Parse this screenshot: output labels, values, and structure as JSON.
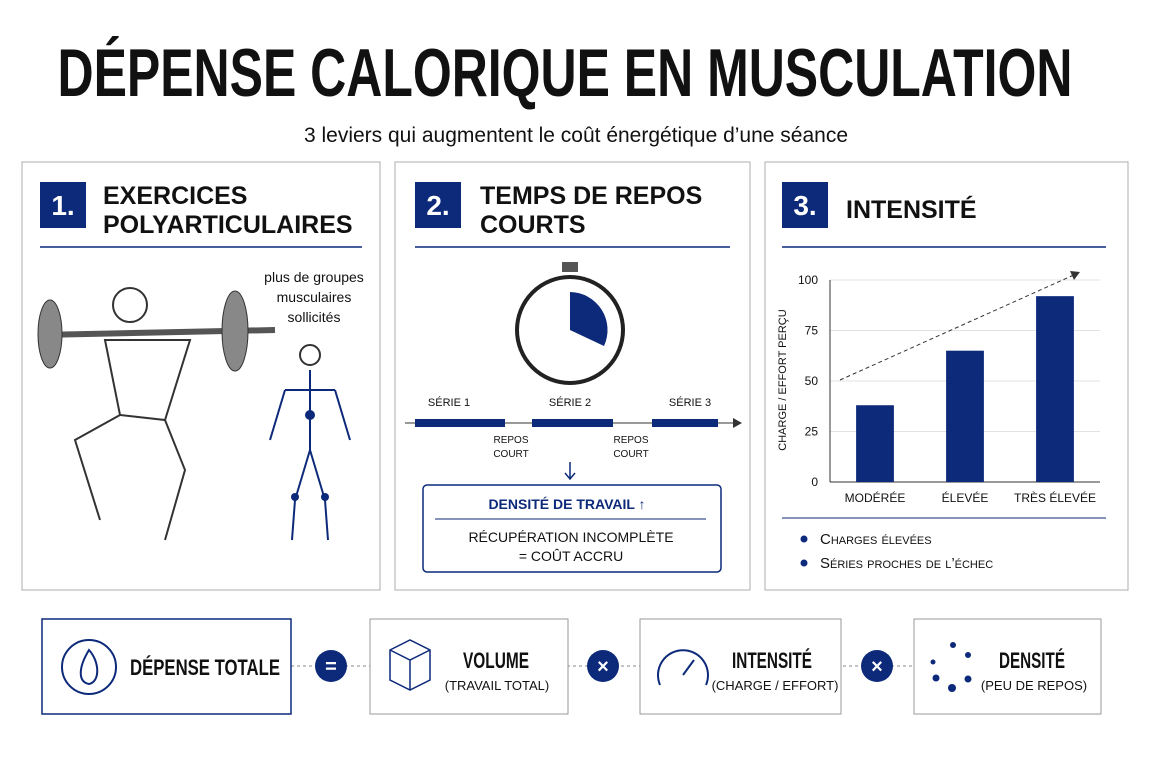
{
  "header": {
    "title": "DÉPENSE CALORIQUE EN MUSCULATION",
    "subtitle": "3 leviers qui augmentent le coût énergétique d’une séance"
  },
  "panels": [
    {
      "number": "1.",
      "title": [
        "EXERCICES",
        "POLYARTICULAIRES"
      ],
      "caption": [
        "plus de groupes",
        "musculaires",
        "sollicités"
      ]
    },
    {
      "number": "2.",
      "title": [
        "TEMPS DE REPOS",
        "COURTS"
      ],
      "sets": [
        "SÉRIE 1",
        "SÉRIE 2",
        "SÉRIE 3"
      ],
      "rests": [
        [
          "REPOS",
          "COURT"
        ],
        [
          "REPOS",
          "COURT"
        ]
      ],
      "box_title": "DENSITÉ DE TRAVAIL ↑",
      "box_lines": [
        "RÉCUPÉRATION INCOMPLÈTE",
        "= COÛT ACCRU"
      ]
    },
    {
      "number": "3.",
      "title": [
        "INTENSITÉ"
      ],
      "bullets": [
        "Charges élevées",
        "Séries proches de l’échec"
      ]
    }
  ],
  "chart_data": {
    "type": "bar",
    "y_label": "CHARGE / EFFORT PERÇU",
    "categories": [
      "MODÉRÉE",
      "ÉLEVÉE",
      "TRÈS ÉLEVÉE"
    ],
    "values": [
      38,
      65,
      92
    ],
    "color": "#0d2a7a",
    "ylim": [
      0,
      100
    ],
    "yticks": [
      0,
      25,
      50,
      75,
      100
    ],
    "grid": true
  },
  "formula": {
    "terms": [
      {
        "title": "DÉPENSE TOTALE"
      },
      {
        "title": "VOLUME",
        "note": "(TRAVAIL TOTAL)"
      },
      {
        "title": "INTENSITÉ",
        "note": "(CHARGE / EFFORT)"
      },
      {
        "title": "DENSITÉ",
        "note": "(PEU DE REPOS)"
      }
    ],
    "operators": [
      "=",
      "×",
      "×"
    ]
  }
}
